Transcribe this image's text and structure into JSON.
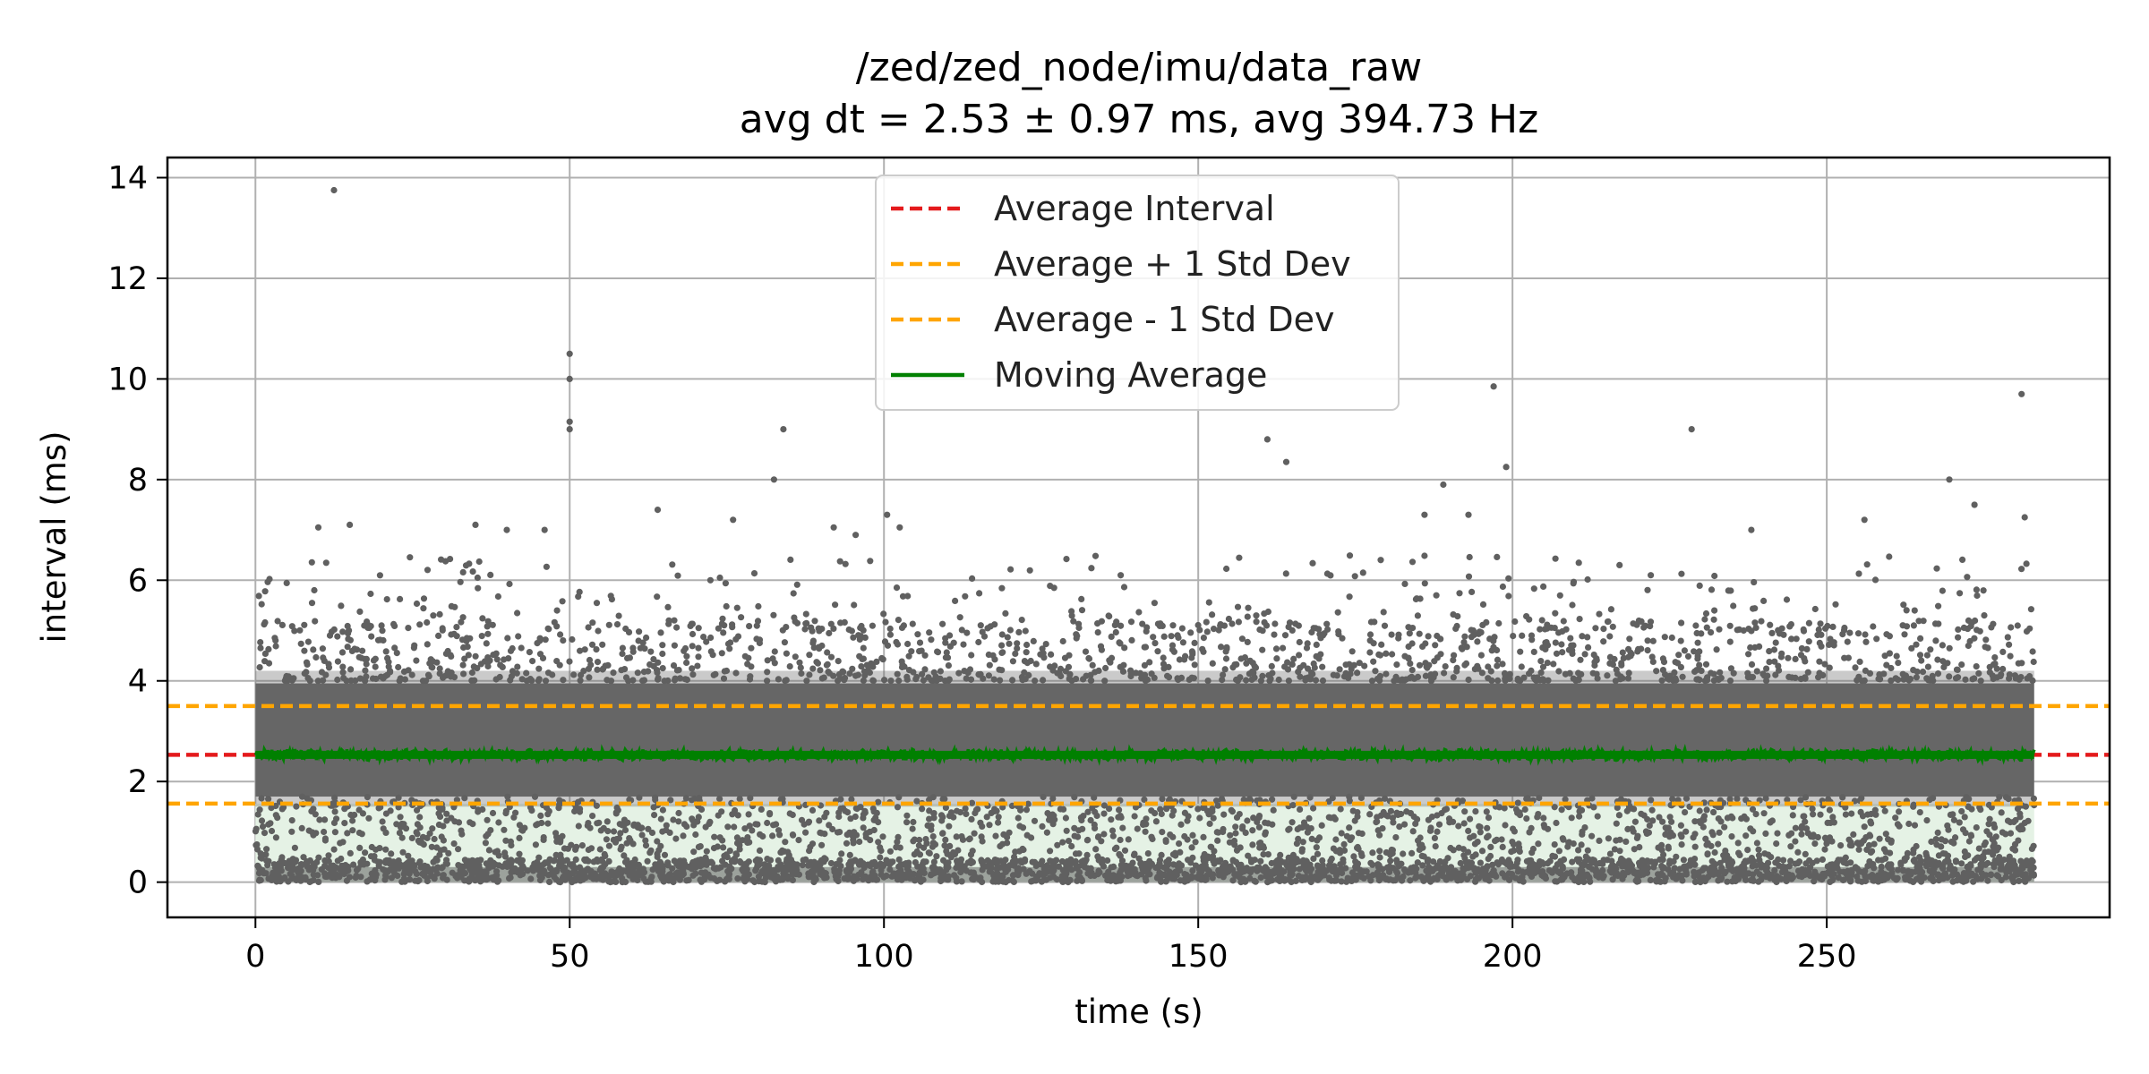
{
  "chart_data": {
    "type": "scatter",
    "title": "/zed/zed_node/imu/data_raw",
    "subtitle": "avg dt = 2.53 ± 0.97 ms, avg 394.73 Hz",
    "xlabel": "time (s)",
    "ylabel": "interval (ms)",
    "xlim": [
      -14,
      295
    ],
    "ylim": [
      -0.7,
      14.4
    ],
    "x_ticks": [
      0,
      50,
      100,
      150,
      200,
      250
    ],
    "y_ticks": [
      0,
      2,
      4,
      6,
      8,
      10,
      12,
      14
    ],
    "grid": true,
    "legend_position": "top-center",
    "time_range": [
      0,
      283
    ],
    "reference_lines": [
      {
        "name": "Average Interval",
        "value": 2.53,
        "color": "#e41a1c",
        "style": "dashed"
      },
      {
        "name": "Average + 1 Std Dev",
        "value": 3.5,
        "color": "#ffa500",
        "style": "dashed"
      },
      {
        "name": "Average - 1 Std Dev",
        "value": 1.56,
        "color": "#ffa500",
        "style": "dashed"
      }
    ],
    "moving_average": {
      "name": "Moving Average",
      "value": 2.53,
      "color": "#008000",
      "style": "solid"
    },
    "std_band": {
      "low": 1.56,
      "high": 3.5,
      "low_fill": [
        0,
        1.56
      ],
      "fill_color": "#e5f2e5"
    },
    "dense_band": {
      "low": 1.7,
      "high": 3.95,
      "color": "#666666"
    },
    "point_color": "#606060",
    "outliers": [
      {
        "x": 12.5,
        "y": 13.75
      },
      {
        "x": 50,
        "y": 10.5
      },
      {
        "x": 50,
        "y": 10.0
      },
      {
        "x": 50,
        "y": 9.15
      },
      {
        "x": 50,
        "y": 9.0
      },
      {
        "x": 84,
        "y": 9.0
      },
      {
        "x": 82.5,
        "y": 8.0
      },
      {
        "x": 161,
        "y": 8.8
      },
      {
        "x": 164,
        "y": 8.35
      },
      {
        "x": 197,
        "y": 9.85
      },
      {
        "x": 199,
        "y": 8.25
      },
      {
        "x": 189,
        "y": 7.9
      },
      {
        "x": 228.5,
        "y": 9.0
      },
      {
        "x": 269.5,
        "y": 8.0
      },
      {
        "x": 273.5,
        "y": 7.5
      },
      {
        "x": 281,
        "y": 9.7
      },
      {
        "x": 281.5,
        "y": 7.25
      },
      {
        "x": 10,
        "y": 7.05
      },
      {
        "x": 15,
        "y": 7.1
      },
      {
        "x": 35,
        "y": 7.1
      },
      {
        "x": 40,
        "y": 7.0
      },
      {
        "x": 46,
        "y": 7.0
      },
      {
        "x": 64,
        "y": 7.4
      },
      {
        "x": 76,
        "y": 7.2
      },
      {
        "x": 92,
        "y": 7.05
      },
      {
        "x": 95.5,
        "y": 6.9
      },
      {
        "x": 100.5,
        "y": 7.3
      },
      {
        "x": 102.5,
        "y": 7.05
      },
      {
        "x": 186,
        "y": 7.3
      },
      {
        "x": 193,
        "y": 7.3
      },
      {
        "x": 256,
        "y": 7.2
      },
      {
        "x": 222,
        "y": 6.1
      },
      {
        "x": 238,
        "y": 7.0
      }
    ]
  },
  "legend": {
    "items": [
      {
        "label": "Average Interval",
        "color": "#e41a1c",
        "style": "dashed"
      },
      {
        "label": "Average + 1 Std Dev",
        "color": "#ffa500",
        "style": "dashed"
      },
      {
        "label": "Average - 1 Std Dev",
        "color": "#ffa500",
        "style": "dashed"
      },
      {
        "label": "Moving Average",
        "color": "#008000",
        "style": "solid"
      }
    ]
  }
}
